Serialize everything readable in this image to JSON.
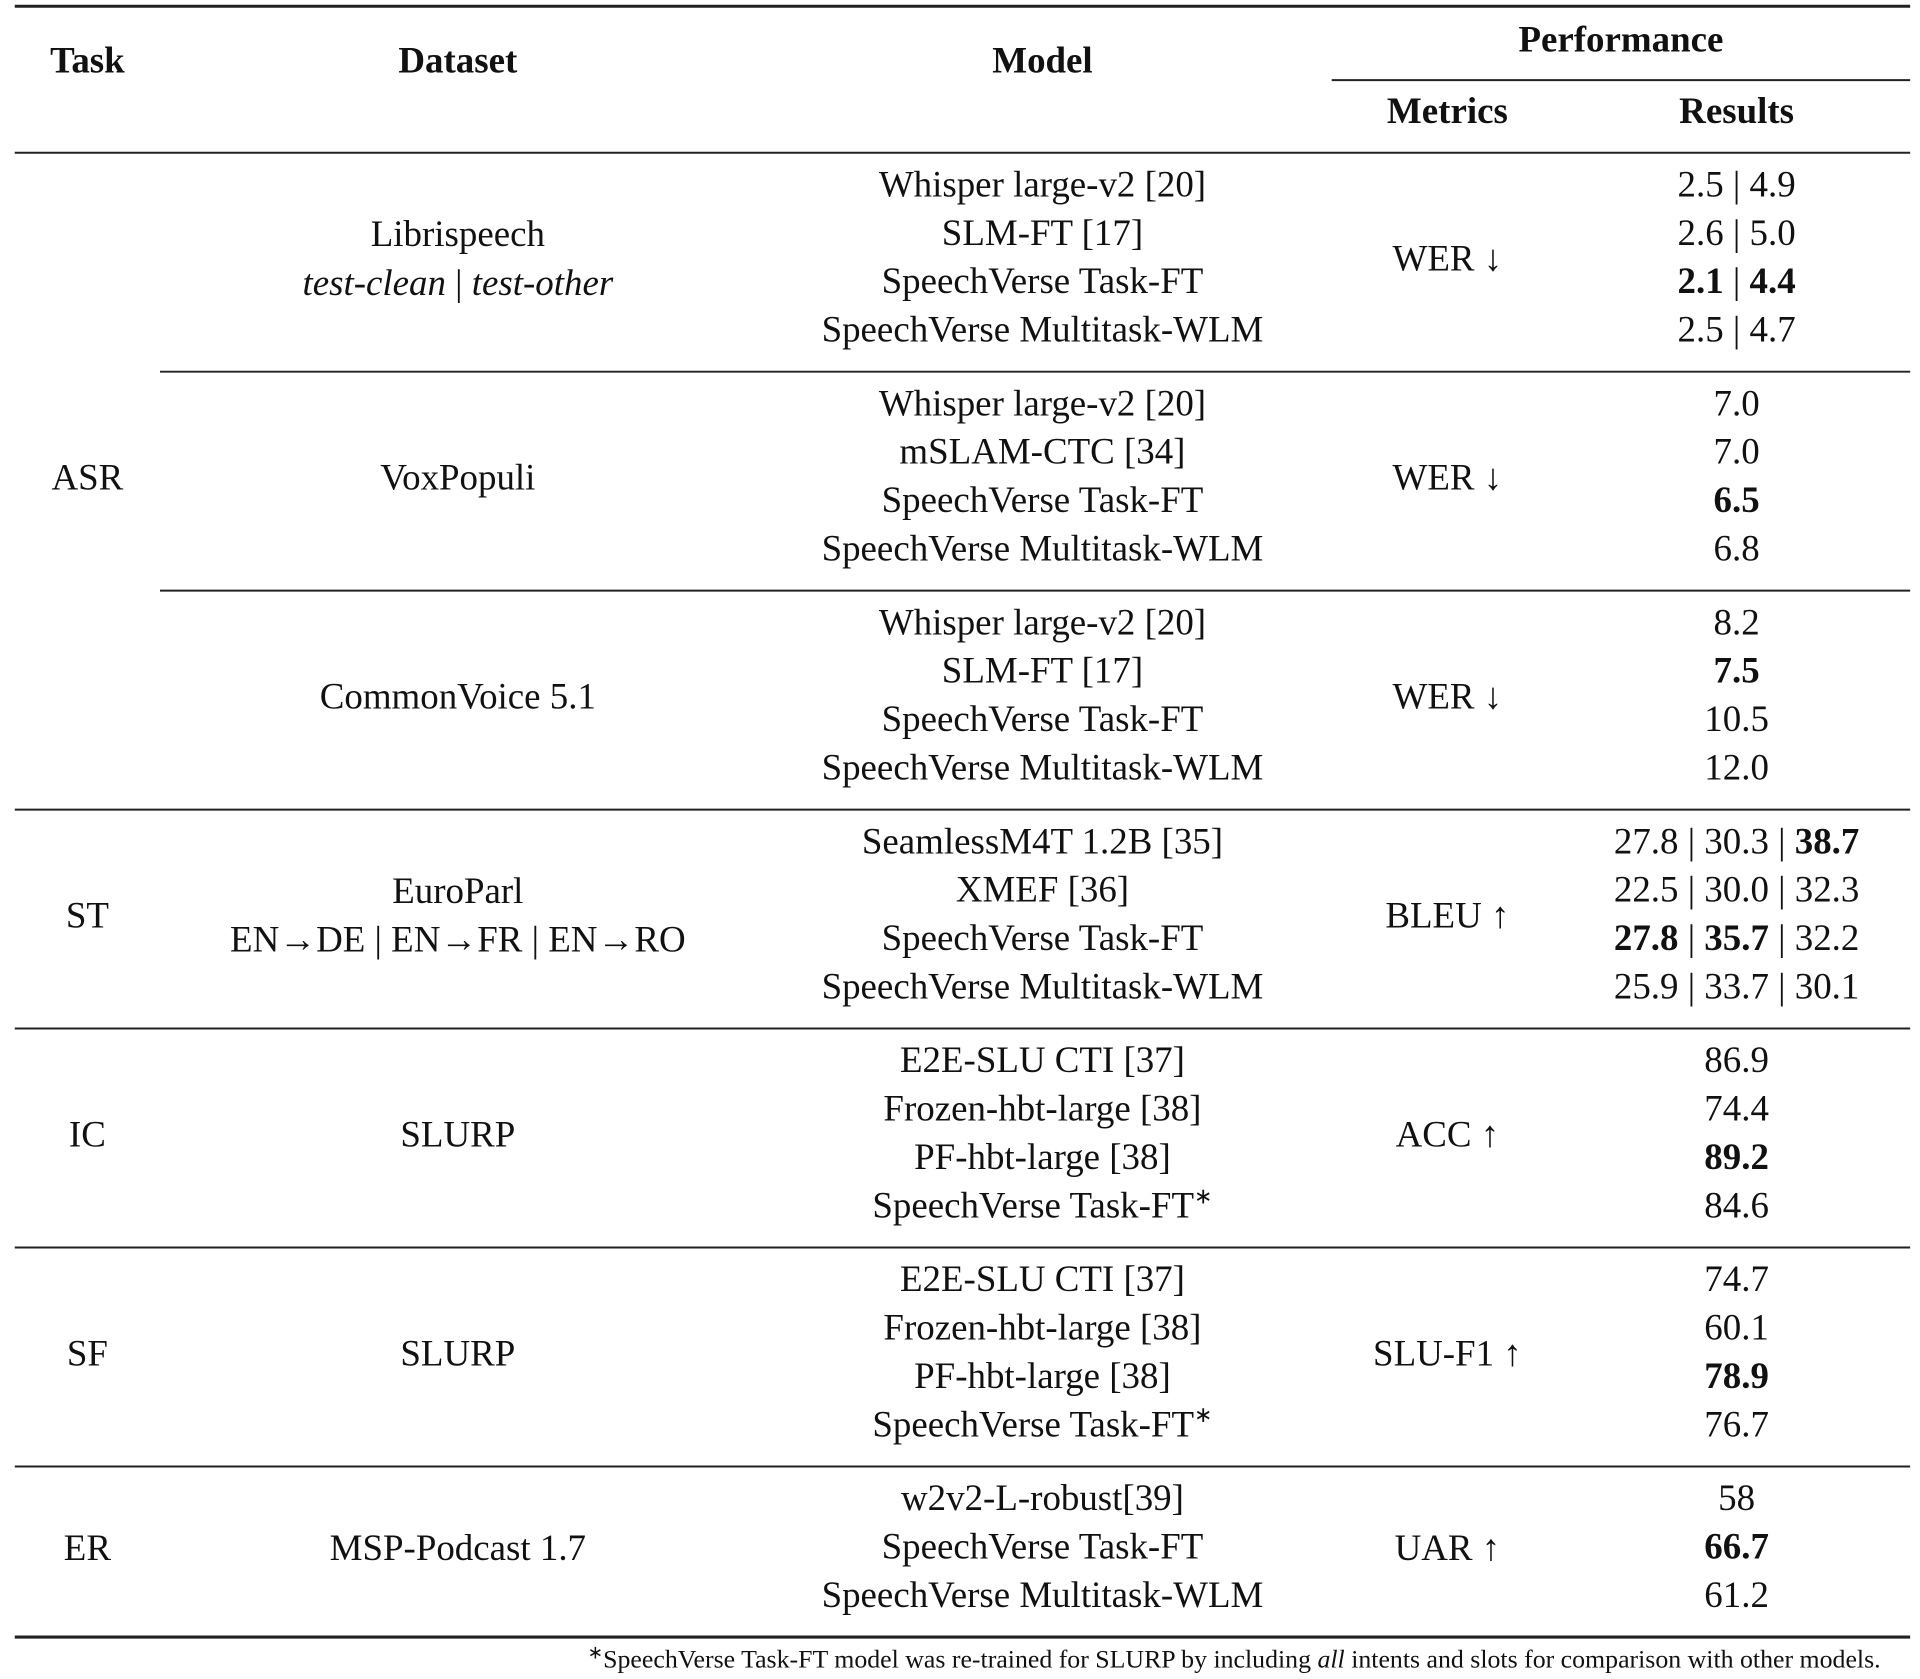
{
  "header": {
    "task": "Task",
    "dataset": "Dataset",
    "model": "Model",
    "performance": "Performance",
    "metrics": "Metrics",
    "results": "Results"
  },
  "groups": [
    {
      "task": "ASR",
      "blocks": [
        {
          "dataset": {
            "name": "Librispeech",
            "subtitle": [
              {
                "text": "test-clean",
                "italic": true
              },
              {
                "text": " | "
              },
              {
                "text": "test-other",
                "italic": true
              }
            ]
          },
          "metric": "WER ↓",
          "rows": [
            {
              "model": "Whisper large-v2 [20]",
              "result": [
                {
                  "text": "2.5"
                },
                {
                  "text": " | "
                },
                {
                  "text": "4.9"
                }
              ]
            },
            {
              "model": "SLM-FT [17]",
              "result": [
                {
                  "text": "2.6"
                },
                {
                  "text": " | "
                },
                {
                  "text": "5.0"
                }
              ]
            },
            {
              "model": "SpeechVerse Task-FT",
              "result": [
                {
                  "text": "2.1",
                  "bold": true
                },
                {
                  "text": " | "
                },
                {
                  "text": "4.4",
                  "bold": true
                }
              ]
            },
            {
              "model": "SpeechVerse Multitask-WLM",
              "result": [
                {
                  "text": "2.5"
                },
                {
                  "text": " | "
                },
                {
                  "text": "4.7"
                }
              ]
            }
          ]
        },
        {
          "dataset": {
            "name": "VoxPopuli"
          },
          "metric": "WER ↓",
          "rows": [
            {
              "model": "Whisper large-v2 [20]",
              "result": [
                {
                  "text": "7.0"
                }
              ]
            },
            {
              "model": "mSLAM-CTC [34]",
              "result": [
                {
                  "text": "7.0"
                }
              ]
            },
            {
              "model": "SpeechVerse Task-FT",
              "result": [
                {
                  "text": "6.5",
                  "bold": true
                }
              ]
            },
            {
              "model": "SpeechVerse Multitask-WLM",
              "result": [
                {
                  "text": "6.8"
                }
              ]
            }
          ]
        },
        {
          "dataset": {
            "name": "CommonVoice 5.1"
          },
          "metric": "WER ↓",
          "rows": [
            {
              "model": "Whisper large-v2 [20]",
              "result": [
                {
                  "text": "8.2"
                }
              ]
            },
            {
              "model": "SLM-FT [17]",
              "result": [
                {
                  "text": "7.5",
                  "bold": true
                }
              ]
            },
            {
              "model": "SpeechVerse Task-FT",
              "result": [
                {
                  "text": "10.5"
                }
              ]
            },
            {
              "model": "SpeechVerse Multitask-WLM",
              "result": [
                {
                  "text": "12.0"
                }
              ]
            }
          ]
        }
      ]
    },
    {
      "task": "ST",
      "blocks": [
        {
          "dataset": {
            "name": "EuroParl",
            "subtitle": [
              {
                "text": "EN→DE | EN→FR | EN→RO"
              }
            ]
          },
          "metric": "BLEU ↑",
          "rows": [
            {
              "model": "SeamlessM4T 1.2B [35]",
              "result": [
                {
                  "text": "27.8"
                },
                {
                  "text": " | "
                },
                {
                  "text": "30.3"
                },
                {
                  "text": " | "
                },
                {
                  "text": "38.7",
                  "bold": true
                }
              ]
            },
            {
              "model": "XMEF [36]",
              "result": [
                {
                  "text": "22.5"
                },
                {
                  "text": " | "
                },
                {
                  "text": "30.0"
                },
                {
                  "text": " | "
                },
                {
                  "text": "32.3"
                }
              ]
            },
            {
              "model": "SpeechVerse Task-FT",
              "result": [
                {
                  "text": "27.8",
                  "bold": true
                },
                {
                  "text": " | "
                },
                {
                  "text": "35.7",
                  "bold": true
                },
                {
                  "text": " | "
                },
                {
                  "text": "32.2"
                }
              ]
            },
            {
              "model": "SpeechVerse Multitask-WLM",
              "result": [
                {
                  "text": "25.9"
                },
                {
                  "text": " | "
                },
                {
                  "text": "33.7"
                },
                {
                  "text": " | "
                },
                {
                  "text": "30.1"
                }
              ]
            }
          ]
        }
      ]
    },
    {
      "task": "IC",
      "blocks": [
        {
          "dataset": {
            "name": "SLURP"
          },
          "metric": "ACC ↑",
          "rows": [
            {
              "model": "E2E-SLU CTI [37]",
              "result": [
                {
                  "text": "86.9"
                }
              ]
            },
            {
              "model": "Frozen-hbt-large [38]",
              "result": [
                {
                  "text": "74.4"
                }
              ]
            },
            {
              "model": "PF-hbt-large [38]",
              "result": [
                {
                  "text": "89.2",
                  "bold": true
                }
              ]
            },
            {
              "model": "SpeechVerse Task-FT",
              "note": "∗",
              "result": [
                {
                  "text": "84.6"
                }
              ]
            }
          ]
        }
      ]
    },
    {
      "task": "SF",
      "blocks": [
        {
          "dataset": {
            "name": "SLURP"
          },
          "metric": "SLU-F1 ↑",
          "rows": [
            {
              "model": "E2E-SLU CTI [37]",
              "result": [
                {
                  "text": "74.7"
                }
              ]
            },
            {
              "model": "Frozen-hbt-large [38]",
              "result": [
                {
                  "text": "60.1"
                }
              ]
            },
            {
              "model": "PF-hbt-large [38]",
              "result": [
                {
                  "text": "78.9",
                  "bold": true
                }
              ]
            },
            {
              "model": "SpeechVerse Task-FT",
              "note": "∗",
              "result": [
                {
                  "text": "76.7"
                }
              ]
            }
          ]
        }
      ]
    },
    {
      "task": "ER",
      "blocks": [
        {
          "dataset": {
            "name": "MSP-Podcast 1.7"
          },
          "metric": "UAR ↑",
          "rows": [
            {
              "model": "w2v2-L-robust[39]",
              "result": [
                {
                  "text": "58"
                }
              ]
            },
            {
              "model": "SpeechVerse Task-FT",
              "result": [
                {
                  "text": "66.7",
                  "bold": true
                }
              ]
            },
            {
              "model": "SpeechVerse Multitask-WLM",
              "result": [
                {
                  "text": "61.2"
                }
              ]
            }
          ]
        }
      ]
    }
  ],
  "footnote": {
    "mark": "∗",
    "parts": [
      {
        "text": "SpeechVerse Task-FT model was re-trained for SLURP by including "
      },
      {
        "text": "all",
        "italic": true
      },
      {
        "text": " intents and slots for comparison with other models."
      }
    ]
  }
}
